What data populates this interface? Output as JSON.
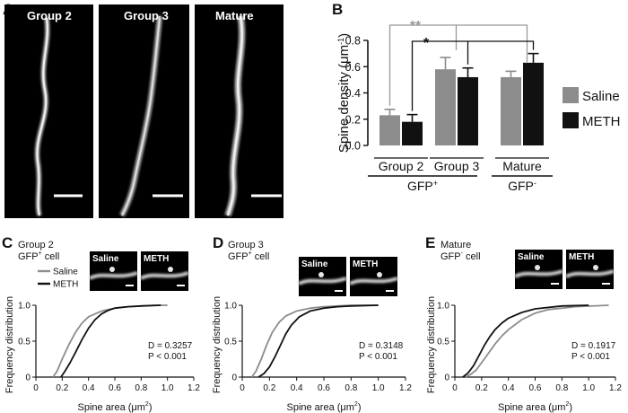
{
  "panel_letters": [
    "A",
    "B",
    "C",
    "D",
    "E"
  ],
  "micrographs": [
    {
      "label": "Group 2"
    },
    {
      "label": "Group 3"
    },
    {
      "label": "Mature"
    }
  ],
  "colors": {
    "saline": "#8c8c8c",
    "meth": "#111111",
    "sig_gray": "#999999",
    "panel_bg": "#000000"
  },
  "chart_data": [
    {
      "id": "B",
      "type": "bar",
      "title": "",
      "xlabel": "",
      "ylabel": "Spine density (μm",
      "ylabel_sup": "-1",
      "ylabel_close": ")",
      "ylim": [
        0,
        0.8
      ],
      "yticks": [
        "0.0",
        "0.2",
        "0.4",
        "0.6",
        "0.8"
      ],
      "categories": [
        "Group 2",
        "Group 3",
        "Mature"
      ],
      "super_groups": [
        {
          "label": "GFP",
          "sup": "+",
          "spans": [
            "Group 2",
            "Group 3"
          ]
        },
        {
          "label": "GFP",
          "sup": "-",
          "spans": [
            "Mature"
          ]
        }
      ],
      "series": [
        {
          "name": "Saline",
          "values": [
            0.23,
            0.58,
            0.52
          ],
          "errors": [
            0.045,
            0.09,
            0.045
          ]
        },
        {
          "name": "METH",
          "values": [
            0.18,
            0.52,
            0.63
          ],
          "errors": [
            0.055,
            0.07,
            0.07
          ]
        }
      ],
      "significance": [
        {
          "text": "**",
          "color": "gray"
        },
        {
          "text": "*",
          "color": "black"
        }
      ],
      "legend_position": "right"
    },
    {
      "id": "C",
      "type": "line",
      "title": "Group 2",
      "subtitle_label": "GFP",
      "subtitle_sup": "+",
      "subtitle_rest": " cell",
      "xlabel": "Spine area (μm",
      "xlabel_sup": "2",
      "xlabel_close": ")",
      "ylabel": "Frequency distribution",
      "xlim": [
        0,
        1.2
      ],
      "ylim": [
        0,
        1.0
      ],
      "xticks": [
        "0",
        "0.2",
        "0.4",
        "0.6",
        "0.8",
        "1.0",
        "1.2"
      ],
      "yticks": [
        "0",
        "0.5",
        "1.0"
      ],
      "legend": [
        "Saline",
        "METH"
      ],
      "stats": {
        "d": "D = 0.3257",
        "p": "P < 0.001"
      },
      "thumbs": [
        "Saline",
        "METH"
      ],
      "series": [
        {
          "name": "Saline",
          "x": [
            0.13,
            0.16,
            0.2,
            0.25,
            0.3,
            0.35,
            0.4,
            0.5,
            0.6,
            0.7,
            0.8,
            0.9,
            1.0
          ],
          "y": [
            0,
            0.08,
            0.25,
            0.45,
            0.62,
            0.75,
            0.84,
            0.92,
            0.96,
            0.98,
            0.99,
            1.0,
            1.0
          ]
        },
        {
          "name": "METH",
          "x": [
            0.19,
            0.22,
            0.26,
            0.3,
            0.35,
            0.4,
            0.45,
            0.5,
            0.55,
            0.6,
            0.7,
            0.8,
            0.95
          ],
          "y": [
            0,
            0.08,
            0.2,
            0.34,
            0.52,
            0.68,
            0.8,
            0.88,
            0.93,
            0.96,
            0.98,
            0.99,
            1.0
          ]
        }
      ]
    },
    {
      "id": "D",
      "type": "line",
      "title": "Group 3",
      "subtitle_label": "GFP",
      "subtitle_sup": "+",
      "subtitle_rest": " cell",
      "xlabel": "Spine area (μm",
      "xlabel_sup": "2",
      "xlabel_close": ")",
      "ylabel": "Frequency distribution",
      "xlim": [
        0,
        1.2
      ],
      "ylim": [
        0,
        1.0
      ],
      "xticks": [
        "0",
        "0.2",
        "0.4",
        "0.6",
        "0.8",
        "1.0",
        "1.2"
      ],
      "yticks": [
        "0",
        "0.5",
        "1.0"
      ],
      "stats": {
        "d": "D = 0.3148",
        "p": "P < 0.001"
      },
      "thumbs": [
        "Saline",
        "METH"
      ],
      "series": [
        {
          "name": "Saline",
          "x": [
            0.07,
            0.1,
            0.14,
            0.18,
            0.22,
            0.27,
            0.32,
            0.4,
            0.5,
            0.6,
            0.7,
            0.8,
            1.0
          ],
          "y": [
            0,
            0.08,
            0.25,
            0.45,
            0.62,
            0.76,
            0.85,
            0.92,
            0.96,
            0.98,
            0.99,
            1.0,
            1.0
          ]
        },
        {
          "name": "METH",
          "x": [
            0.12,
            0.16,
            0.2,
            0.24,
            0.28,
            0.32,
            0.36,
            0.42,
            0.5,
            0.6,
            0.7,
            0.8,
            1.0
          ],
          "y": [
            0,
            0.05,
            0.14,
            0.28,
            0.44,
            0.6,
            0.72,
            0.84,
            0.92,
            0.96,
            0.98,
            0.99,
            1.0
          ]
        }
      ]
    },
    {
      "id": "E",
      "type": "line",
      "title": "Mature",
      "subtitle_label": "GFP",
      "subtitle_sup": "-",
      "subtitle_rest": " cell",
      "xlabel": "Spine area (μm",
      "xlabel_sup": "2",
      "xlabel_close": ")",
      "ylabel": "Frequency distribution",
      "xlim": [
        0,
        1.2
      ],
      "ylim": [
        0,
        1.0
      ],
      "xticks": [
        "0",
        "0.2",
        "0.4",
        "0.6",
        "0.8",
        "1.0",
        "1.2"
      ],
      "yticks": [
        "0",
        "0.5",
        "1.0"
      ],
      "stats": {
        "d": "D = 0.1917",
        "p": "P < 0.001"
      },
      "thumbs": [
        "Saline",
        "METH"
      ],
      "series": [
        {
          "name": "Saline",
          "x": [
            0.08,
            0.12,
            0.16,
            0.2,
            0.25,
            0.3,
            0.35,
            0.4,
            0.5,
            0.6,
            0.7,
            0.9,
            1.15
          ],
          "y": [
            0,
            0.04,
            0.1,
            0.2,
            0.33,
            0.46,
            0.57,
            0.66,
            0.8,
            0.89,
            0.94,
            0.98,
            1.0
          ]
        },
        {
          "name": "METH",
          "x": [
            0.06,
            0.1,
            0.14,
            0.18,
            0.22,
            0.26,
            0.3,
            0.35,
            0.4,
            0.5,
            0.6,
            0.8,
            1.0
          ],
          "y": [
            0,
            0.06,
            0.16,
            0.3,
            0.44,
            0.56,
            0.66,
            0.75,
            0.82,
            0.9,
            0.95,
            0.99,
            1.0
          ]
        }
      ]
    }
  ]
}
